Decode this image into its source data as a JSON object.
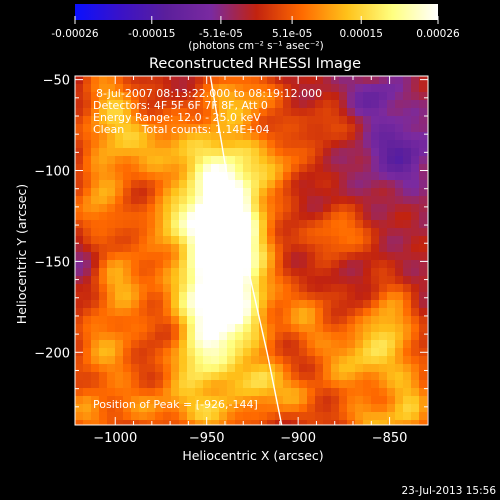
{
  "chart_data": {
    "type": "heatmap",
    "title": "Reconstructed RHESSI Image",
    "xlabel": "Heliocentric X (arcsec)",
    "ylabel": "Heliocentric Y (arcsec)",
    "xlim": [
      -1022,
      -829
    ],
    "ylim": [
      -240,
      -48
    ],
    "x_ticks": [
      -1000,
      -950,
      -900,
      -850
    ],
    "y_ticks": [
      -50,
      -100,
      -150,
      -200
    ],
    "x_tick_labels": [
      "−1000",
      "−950",
      "−900",
      "−850"
    ],
    "y_tick_labels": [
      "−50",
      "−100",
      "−150",
      "−200"
    ],
    "info_lines": [
      "8-Jul-2007 08:13:22.000 to 08:19:12.000",
      "Detectors: 4F 5F 6F 7F 8F, Att 0",
      "Energy Range: 12.0 - 25.0 keV",
      "Clean     Total counts: 1.14E+04"
    ],
    "peak_label": "Position of Peak = [-926,-144]",
    "peak": [
      -926,
      -144
    ],
    "colorbar": {
      "min": -0.00026,
      "max": 0.00026,
      "tick_values": [
        -0.00026,
        -0.00015,
        -5.1e-05,
        5.1e-05,
        0.00015,
        0.00026
      ],
      "tick_labels": [
        "-0.00026",
        "-0.00015",
        "-5.1e-05",
        "5.1e-05",
        "0.00015",
        "0.00026"
      ],
      "unit_label": "(photons cm⁻² s⁻¹ asec⁻²)",
      "colors": [
        "#0a10ff",
        "#3a12c8",
        "#5b1f9c",
        "#7a2aa0",
        "#c2230f",
        "#ff6a00",
        "#ffc21a",
        "#ffff80",
        "#ffffff"
      ]
    },
    "limb_points": [
      [
        -948,
        -48
      ],
      [
        -936,
        -120
      ],
      [
        -926,
        -160
      ],
      [
        -917,
        -200
      ],
      [
        -909,
        -240
      ]
    ]
  },
  "footer": {
    "timestamp": "23-Jul-2013 15:56"
  }
}
